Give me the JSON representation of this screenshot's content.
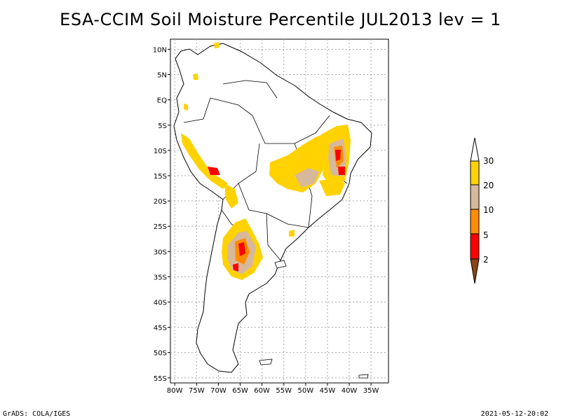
{
  "title": "ESA-CCIM Soil Moisture Percentile JUL2013 lev = 1",
  "footer": {
    "left": "GrADS: COLA/IGES",
    "right": "2021-05-12-20:02"
  },
  "map": {
    "region": "South America",
    "lon_range": [
      -81,
      -31
    ],
    "lat_range": [
      -56,
      12
    ],
    "lat_labels": [
      "10N",
      "5N",
      "EQ",
      "5S",
      "10S",
      "15S",
      "20S",
      "25S",
      "30S",
      "35S",
      "40S",
      "45S",
      "50S",
      "55S"
    ],
    "lat_values": [
      10,
      5,
      0,
      -5,
      -10,
      -15,
      -20,
      -25,
      -30,
      -35,
      -40,
      -45,
      -50,
      -55
    ],
    "lon_labels": [
      "80W",
      "75W",
      "70W",
      "65W",
      "60W",
      "55W",
      "50W",
      "45W",
      "40W",
      "35W"
    ],
    "lon_values": [
      -80,
      -75,
      -70,
      -65,
      -60,
      -55,
      -50,
      -45,
      -40,
      -35
    ]
  },
  "colorbar": {
    "labels": [
      "2",
      "5",
      "10",
      "20",
      "30"
    ],
    "colors": [
      "#8b4513",
      "#ff0000",
      "#ff8c00",
      "#d8b89a",
      "#ffd200",
      "#ffffff"
    ]
  }
}
